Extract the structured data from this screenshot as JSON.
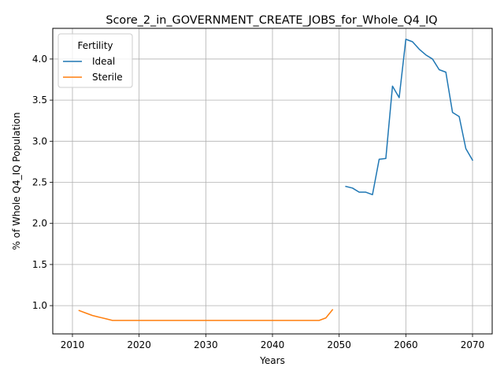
{
  "chart_data": {
    "type": "line",
    "title": "Score_2_in_GOVERNMENT_CREATE_JOBS_for_Whole_Q4_IQ",
    "xlabel": "Years",
    "ylabel": "% of Whole Q4_IQ Population",
    "xlim": [
      2007.05,
      2072.95
    ],
    "ylim": [
      0.656,
      4.373
    ],
    "x_ticks": [
      2010,
      2020,
      2030,
      2040,
      2050,
      2060,
      2070
    ],
    "y_ticks": [
      1.0,
      1.5,
      2.0,
      2.5,
      3.0,
      3.5,
      4.0
    ],
    "x_tick_labels": [
      "2010",
      "2020",
      "2030",
      "2040",
      "2050",
      "2060",
      "2070"
    ],
    "y_tick_labels": [
      "1.0",
      "1.5",
      "2.0",
      "2.5",
      "3.0",
      "3.5",
      "4.0"
    ],
    "grid": true,
    "legend": {
      "title": "Fertility",
      "position": "top-left"
    },
    "series": [
      {
        "name": "Ideal",
        "color": "#1f77b4",
        "x": [
          2051,
          2052,
          2053,
          2054,
          2055,
          2056,
          2057,
          2058,
          2059,
          2060,
          2061,
          2062,
          2063,
          2064,
          2065,
          2066,
          2067,
          2068,
          2069,
          2070
        ],
        "y": [
          2.45,
          2.43,
          2.38,
          2.38,
          2.35,
          2.78,
          2.79,
          3.67,
          3.53,
          4.24,
          4.21,
          4.12,
          4.05,
          4.0,
          3.87,
          3.84,
          3.35,
          3.3,
          2.91,
          2.77
        ]
      },
      {
        "name": "Sterile",
        "color": "#ff7f0e",
        "x": [
          2011,
          2012,
          2013,
          2014,
          2015,
          2016,
          2017,
          2018,
          2019,
          2020,
          2021,
          2022,
          2023,
          2024,
          2025,
          2026,
          2027,
          2028,
          2029,
          2030,
          2031,
          2032,
          2033,
          2034,
          2035,
          2036,
          2037,
          2038,
          2039,
          2040,
          2041,
          2042,
          2043,
          2044,
          2045,
          2046,
          2047,
          2048,
          2049
        ],
        "y": [
          0.94,
          0.91,
          0.88,
          0.86,
          0.84,
          0.82,
          0.82,
          0.82,
          0.82,
          0.82,
          0.82,
          0.82,
          0.82,
          0.82,
          0.82,
          0.82,
          0.82,
          0.82,
          0.82,
          0.82,
          0.82,
          0.82,
          0.82,
          0.82,
          0.82,
          0.82,
          0.82,
          0.82,
          0.82,
          0.82,
          0.82,
          0.82,
          0.82,
          0.82,
          0.82,
          0.82,
          0.82,
          0.85,
          0.95
        ]
      }
    ]
  }
}
